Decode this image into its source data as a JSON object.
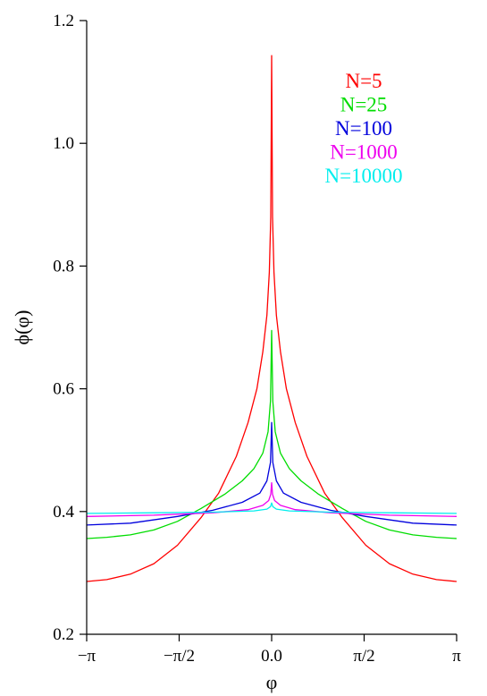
{
  "chart_data": {
    "type": "line",
    "title": "",
    "xlabel": "φ",
    "ylabel": "ϕ(φ)",
    "xlim": [
      -3.14159,
      3.14159
    ],
    "ylim": [
      0.2,
      1.2
    ],
    "grid": false,
    "legend_position": "top-right",
    "xticks": [
      {
        "value": -3.14159,
        "label": "−π"
      },
      {
        "value": -1.5708,
        "label": "−π/2"
      },
      {
        "value": 0,
        "label": "0.0"
      },
      {
        "value": 1.5708,
        "label": "π/2"
      },
      {
        "value": 3.14159,
        "label": "π"
      }
    ],
    "yticks": [
      {
        "value": 0.2,
        "label": "0.2"
      },
      {
        "value": 0.4,
        "label": "0.4"
      },
      {
        "value": 0.6,
        "label": "0.6"
      },
      {
        "value": 0.8,
        "label": "0.8"
      },
      {
        "value": 1.0,
        "label": "1.0"
      },
      {
        "value": 1.2,
        "label": "1.2"
      }
    ],
    "series": [
      {
        "name": "N=5",
        "color": "#ff0000",
        "x": [
          -3.1416,
          -2.8,
          -2.4,
          -2.0,
          -1.6,
          -1.2,
          -0.9,
          -0.6,
          -0.4,
          -0.25,
          -0.15,
          -0.08,
          -0.04,
          -0.015,
          0,
          0.015,
          0.04,
          0.08,
          0.15,
          0.25,
          0.4,
          0.6,
          0.9,
          1.2,
          1.6,
          2.0,
          2.4,
          2.8,
          3.1416
        ],
        "y": [
          0.286,
          0.289,
          0.298,
          0.315,
          0.345,
          0.39,
          0.43,
          0.49,
          0.545,
          0.6,
          0.66,
          0.72,
          0.79,
          0.88,
          1.143,
          0.88,
          0.79,
          0.72,
          0.66,
          0.6,
          0.545,
          0.49,
          0.43,
          0.39,
          0.345,
          0.315,
          0.298,
          0.289,
          0.286
        ]
      },
      {
        "name": "N=25",
        "color": "#00dd00",
        "x": [
          -3.1416,
          -2.8,
          -2.4,
          -2.0,
          -1.6,
          -1.2,
          -0.8,
          -0.5,
          -0.3,
          -0.15,
          -0.06,
          -0.02,
          0,
          0.02,
          0.06,
          0.15,
          0.3,
          0.5,
          0.8,
          1.2,
          1.6,
          2.0,
          2.4,
          2.8,
          3.1416
        ],
        "y": [
          0.356,
          0.358,
          0.362,
          0.37,
          0.384,
          0.405,
          0.428,
          0.45,
          0.47,
          0.495,
          0.53,
          0.58,
          0.695,
          0.58,
          0.53,
          0.495,
          0.47,
          0.45,
          0.428,
          0.405,
          0.384,
          0.37,
          0.362,
          0.358,
          0.356
        ]
      },
      {
        "name": "N=100",
        "color": "#0000dd",
        "x": [
          -3.1416,
          -2.4,
          -1.6,
          -1.0,
          -0.5,
          -0.2,
          -0.08,
          -0.02,
          0,
          0.02,
          0.08,
          0.2,
          0.5,
          1.0,
          1.6,
          2.4,
          3.1416
        ],
        "y": [
          0.378,
          0.381,
          0.392,
          0.402,
          0.415,
          0.43,
          0.45,
          0.48,
          0.545,
          0.48,
          0.45,
          0.43,
          0.415,
          0.402,
          0.392,
          0.381,
          0.378
        ]
      },
      {
        "name": "N=1000",
        "color": "#ee00ee",
        "x": [
          -3.1416,
          -2.0,
          -1.0,
          -0.4,
          -0.15,
          -0.05,
          -0.015,
          0,
          0.015,
          0.05,
          0.15,
          0.4,
          1.0,
          2.0,
          3.1416
        ],
        "y": [
          0.392,
          0.394,
          0.398,
          0.403,
          0.41,
          0.418,
          0.428,
          0.447,
          0.428,
          0.418,
          0.41,
          0.403,
          0.398,
          0.394,
          0.392
        ]
      },
      {
        "name": "N=10000",
        "color": "#00eeee",
        "x": [
          -3.1416,
          -2.0,
          -1.0,
          -0.3,
          -0.08,
          -0.02,
          0,
          0.02,
          0.08,
          0.3,
          1.0,
          2.0,
          3.1416
        ],
        "y": [
          0.397,
          0.398,
          0.399,
          0.401,
          0.404,
          0.408,
          0.414,
          0.408,
          0.404,
          0.401,
          0.399,
          0.398,
          0.397
        ]
      }
    ]
  }
}
